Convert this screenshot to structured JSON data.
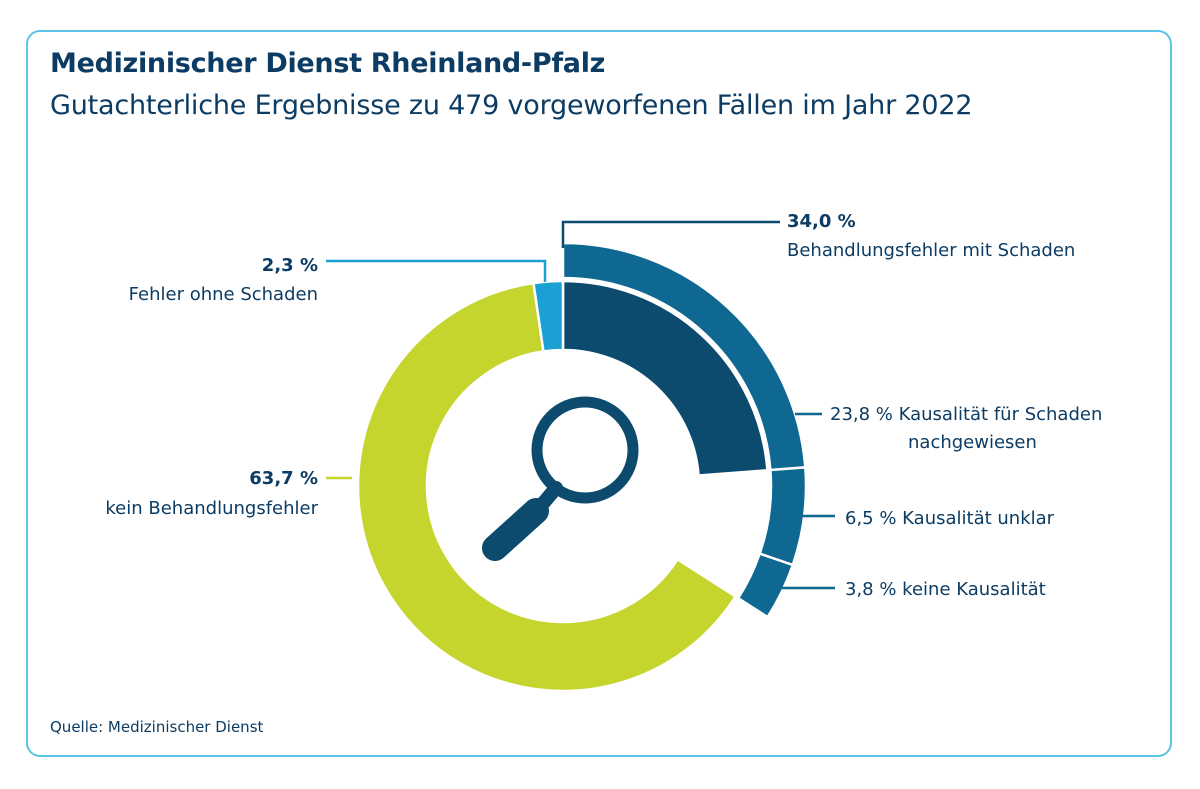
{
  "header": {
    "title": "Medizinischer Dienst Rheinland-Pfalz",
    "subtitle": "Gutachterliche Ergebnisse zu 479 vorgeworfenen Fällen im Jahr 2022"
  },
  "footer": {
    "source": "Quelle: Medizinischer Dienst"
  },
  "icon": "magnifier-icon",
  "colors": {
    "frame": "#5cc3e6",
    "text": "#0c3c63",
    "kein_behandlungsfehler": "#c6d52e",
    "fehler_ohne_schaden": "#1ba0d4",
    "behandlungsfehler_mit_schaden": "#0e6892",
    "kausalitaet_nachgewiesen": "#0c4a6e"
  },
  "chart_data": {
    "type": "pie",
    "title": "",
    "inner_ring": [
      {
        "key": "kausalitaet_nachgewiesen",
        "value": 23.8,
        "color": "#0c4a6e"
      },
      {
        "key": "kausalitaet_unklar",
        "value": 6.5,
        "color": "#0e6892"
      },
      {
        "key": "keine_kausalitaet",
        "value": 3.8,
        "color": "#0e6892"
      },
      {
        "key": "kein_behandlungsfehler",
        "value": 63.7,
        "color": "#c6d52e"
      },
      {
        "key": "fehler_ohne_schaden",
        "value": 2.3,
        "color": "#1ba0d4"
      }
    ],
    "outer_ring": [
      {
        "key": "behandlungsfehler_mit_schaden",
        "value": 34.0,
        "color": "#0e6892"
      }
    ],
    "labels": {
      "behandlungsfehler_mit_schaden": {
        "value": "34,0 %",
        "text": "Behandlungsfehler mit Schaden"
      },
      "fehler_ohne_schaden": {
        "value": "2,3 %",
        "text": "Fehler ohne Schaden"
      },
      "kein_behandlungsfehler": {
        "value": "63,7 %",
        "text": "kein Behandlungsfehler"
      },
      "kausalitaet_nachgewiesen": {
        "line1": "23,8 % Kausalität für Schaden",
        "line2": "nachgewiesen"
      },
      "kausalitaet_unklar": {
        "text": "6,5 % Kausalität unklar"
      },
      "keine_kausalitaet": {
        "text": "3,8 % keine Kausalität"
      }
    }
  }
}
